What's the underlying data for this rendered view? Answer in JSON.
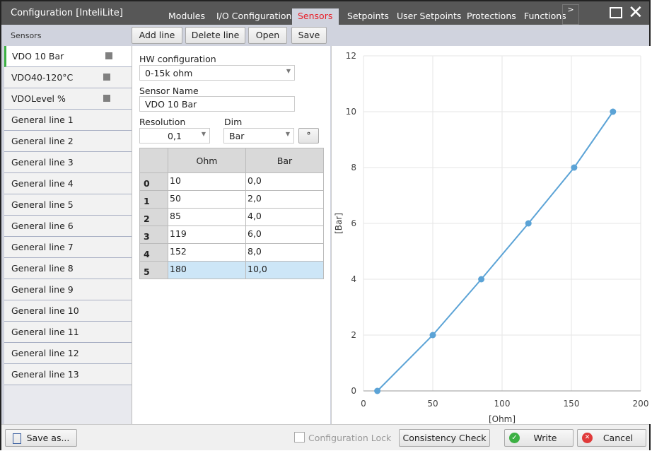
{
  "window": {
    "title": "Configuration [InteliLite]",
    "more": ">"
  },
  "tabs": [
    {
      "label": "Modules"
    },
    {
      "label": "I/O Configuration"
    },
    {
      "label": "Sensors",
      "active": true
    },
    {
      "label": "Setpoints"
    },
    {
      "label": "User Setpoints"
    },
    {
      "label": "Protections"
    },
    {
      "label": "Functions"
    }
  ],
  "section_title": "Sensors",
  "toolbar": {
    "add": "Add line",
    "delete": "Delete line",
    "open": "Open",
    "save": "Save"
  },
  "sidebar": {
    "items": [
      "VDO 10 Bar",
      "VDO40-120°C",
      "VDOLevel %",
      "General line 1",
      "General line 2",
      "General line 3",
      "General line 4",
      "General line 5",
      "General line 6",
      "General line 7",
      "General line 8",
      "General line 9",
      "General line 10",
      "General line 11",
      "General line 12",
      "General line 13"
    ]
  },
  "form": {
    "hw_label": "HW configuration",
    "hw_value": "0-15k ohm",
    "name_label": "Sensor Name",
    "name_value": "VDO 10 Bar",
    "res_label": "Resolution",
    "res_value": "0,1",
    "dim_label": "Dim",
    "dim_value": "Bar",
    "degree_button": "°"
  },
  "table": {
    "headers": [
      "Ohm",
      "Bar"
    ],
    "rows": [
      [
        "0",
        "10",
        "0,0"
      ],
      [
        "1",
        "50",
        "2,0"
      ],
      [
        "2",
        "85",
        "4,0"
      ],
      [
        "3",
        "119",
        "6,0"
      ],
      [
        "4",
        "152",
        "8,0"
      ],
      [
        "5",
        "180",
        "10,0"
      ]
    ],
    "selected_row": 5
  },
  "chart_data": {
    "type": "line",
    "x": [
      10,
      50,
      85,
      119,
      152,
      180
    ],
    "y": [
      0,
      2,
      4,
      6,
      8,
      10
    ],
    "xlabel": "[Ohm]",
    "ylabel": "[Bar]",
    "xlim": [
      0,
      200
    ],
    "ylim": [
      0,
      12
    ],
    "xticks": [
      0,
      50,
      100,
      150,
      200
    ],
    "yticks": [
      0,
      2,
      4,
      6,
      8,
      10,
      12
    ],
    "grid": true,
    "color": "#5ba3d6"
  },
  "footer": {
    "save_as": "Save as...",
    "config_lock": "Configuration Lock",
    "consistency": "Consistency Check",
    "write": "Write",
    "cancel": "Cancel"
  }
}
